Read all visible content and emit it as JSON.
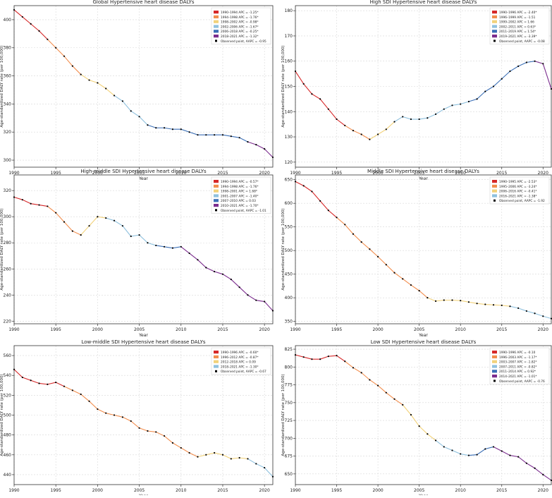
{
  "figure": {
    "shared_xlabel": "Year",
    "shared_ylabel": "Age-standardized DALY rate (per 100,000)",
    "observed_label_prefix": "Observed point, AAPC = "
  },
  "chart_data": [
    {
      "type": "line",
      "title": "Global Hypertensive heart disease DALYs",
      "xlabel": "Year",
      "ylabel": "Age-standardized DALY rate (per 100,000)",
      "xlim": [
        1990,
        2021
      ],
      "ylim": [
        295,
        410
      ],
      "yticks": [
        300,
        320,
        340,
        360,
        380,
        400
      ],
      "xticks": [
        1990,
        1995,
        2000,
        2005,
        2010,
        2015,
        2020
      ],
      "grid": true,
      "legend_position": "top-right",
      "aapc": "-0.95",
      "segments": [
        {
          "label": "1990–1994 APC = -1.25*",
          "color": "#d62728",
          "range": [
            1990,
            1994
          ]
        },
        {
          "label": "1994–1998 APC = -1.76*",
          "color": "#f28e4e",
          "range": [
            1994,
            1998
          ]
        },
        {
          "label": "1998–2002 APC = -0.98*",
          "color": "#f2d27a",
          "range": [
            1998,
            2002
          ]
        },
        {
          "label": "2002–2006 APC = -1.67*",
          "color": "#8fc1de",
          "range": [
            2002,
            2006
          ]
        },
        {
          "label": "2006–2018 APC = -0.25*",
          "color": "#3b6fb6",
          "range": [
            2006,
            2018
          ]
        },
        {
          "label": "2018–2021 APC = -1.32*",
          "color": "#7b2d8e",
          "range": [
            2018,
            2021
          ]
        }
      ],
      "x": [
        1990,
        1991,
        1992,
        1993,
        1994,
        1995,
        1996,
        1997,
        1998,
        1999,
        2000,
        2001,
        2002,
        2003,
        2004,
        2005,
        2006,
        2007,
        2008,
        2009,
        2010,
        2011,
        2012,
        2013,
        2014,
        2015,
        2016,
        2017,
        2018,
        2019,
        2020,
        2021
      ],
      "y": [
        407,
        402,
        397,
        392,
        386,
        380,
        374,
        367,
        361,
        357,
        355,
        351,
        346,
        342,
        335,
        331,
        325,
        323,
        323,
        322,
        322,
        320,
        318,
        318,
        318,
        318,
        317,
        316,
        313,
        311,
        308,
        302
      ]
    },
    {
      "type": "line",
      "title": "High SDI Hypertensive heart disease DALYs",
      "xlabel": "Year",
      "ylabel": "Age-standardized DALY rate (per 100,000)",
      "xlim": [
        1990,
        2021
      ],
      "ylim": [
        118,
        182
      ],
      "yticks": [
        120,
        130,
        140,
        150,
        160,
        170,
        180
      ],
      "xticks": [
        1990,
        1995,
        2000,
        2005,
        2010,
        2015,
        2020
      ],
      "grid": true,
      "legend_position": "top-right",
      "aapc": "-0.08",
      "segments": [
        {
          "label": "1990–1996 APC = -2.40*",
          "color": "#d62728",
          "range": [
            1990,
            1996
          ]
        },
        {
          "label": "1996–1999 APC = -1.51",
          "color": "#f28e4e",
          "range": [
            1996,
            1999
          ]
        },
        {
          "label": "1999–2002 APC = 1.66",
          "color": "#f2d27a",
          "range": [
            1999,
            2002
          ]
        },
        {
          "label": "2002–2011 APC = 0.63*",
          "color": "#8fc1de",
          "range": [
            2002,
            2011
          ]
        },
        {
          "label": "2011–2019 APC = 1.54*",
          "color": "#3b6fb6",
          "range": [
            2011,
            2019
          ]
        },
        {
          "label": "2019–2021 APC = -3.39*",
          "color": "#7b2d8e",
          "range": [
            2019,
            2021
          ]
        }
      ],
      "x": [
        1990,
        1991,
        1992,
        1993,
        1994,
        1995,
        1996,
        1997,
        1998,
        1999,
        2000,
        2001,
        2002,
        2003,
        2004,
        2005,
        2006,
        2007,
        2008,
        2009,
        2010,
        2011,
        2012,
        2013,
        2014,
        2015,
        2016,
        2017,
        2018,
        2019,
        2020,
        2021
      ],
      "y": [
        156,
        151,
        147,
        145,
        141,
        137,
        134.5,
        132.5,
        131,
        129,
        131,
        133,
        136,
        138,
        137,
        137,
        137.5,
        139,
        141,
        142.5,
        143,
        144,
        145,
        148,
        150,
        153,
        156,
        158,
        159.5,
        160,
        159,
        149
      ]
    },
    {
      "type": "line",
      "title": "High-middle SDI Hypertensive heart disease DALYs",
      "xlabel": "Year",
      "ylabel": "Age-standardized DALY rate (per 100,000)",
      "xlim": [
        1990,
        2021
      ],
      "ylim": [
        218,
        332
      ],
      "yticks": [
        220,
        240,
        260,
        280,
        300,
        320
      ],
      "xticks": [
        1990,
        1995,
        2000,
        2005,
        2010,
        2015,
        2020
      ],
      "grid": true,
      "legend_position": "top-right",
      "aapc": "-1.01",
      "segments": [
        {
          "label": "1990–1994 APC = -0.57*",
          "color": "#d62728",
          "range": [
            1990,
            1994
          ]
        },
        {
          "label": "1994–1998 APC = -1.76*",
          "color": "#f28e4e",
          "range": [
            1994,
            1998
          ]
        },
        {
          "label": "1998–2001 APC = 1.68*",
          "color": "#f2d27a",
          "range": [
            1998,
            2001
          ]
        },
        {
          "label": "2001–2007 APC = -1.40*",
          "color": "#8fc1de",
          "range": [
            2001,
            2007
          ]
        },
        {
          "label": "2007–2010 APC = 0.03",
          "color": "#3b6fb6",
          "range": [
            2007,
            2010
          ]
        },
        {
          "label": "2010–2021 APC = -1.70*",
          "color": "#7b2d8e",
          "range": [
            2010,
            2021
          ]
        }
      ],
      "x": [
        1990,
        1991,
        1992,
        1993,
        1994,
        1995,
        1996,
        1997,
        1998,
        1999,
        2000,
        2001,
        2002,
        2003,
        2004,
        2005,
        2006,
        2007,
        2008,
        2009,
        2010,
        2011,
        2012,
        2013,
        2014,
        2015,
        2016,
        2017,
        2018,
        2019,
        2020,
        2021
      ],
      "y": [
        315,
        313,
        310,
        309,
        308,
        303,
        296,
        289,
        286,
        293,
        300,
        299,
        297,
        293,
        285,
        286,
        280,
        278,
        277,
        276,
        277,
        272,
        267,
        261,
        258,
        256,
        252,
        246,
        240,
        236,
        235,
        228
      ]
    },
    {
      "type": "line",
      "title": "Middle SDI Hypertensive heart disease DALYs",
      "xlabel": "Year",
      "ylabel": "Age-standardized DALY rate (per 100,000)",
      "xlim": [
        1990,
        2021
      ],
      "ylim": [
        345,
        660
      ],
      "yticks": [
        350,
        400,
        450,
        500,
        550,
        600,
        650
      ],
      "xticks": [
        1990,
        1995,
        2000,
        2005,
        2010,
        2015,
        2020
      ],
      "grid": true,
      "legend_position": "top-right",
      "aapc": "-1.92",
      "segments": [
        {
          "label": "1990–1995 APC = -2.53*",
          "color": "#d62728",
          "range": [
            1990,
            1995
          ]
        },
        {
          "label": "1995–2006 APC = -3.24*",
          "color": "#f28e4e",
          "range": [
            1995,
            2006
          ]
        },
        {
          "label": "2006–2016 APC = -0.41*",
          "color": "#f2d27a",
          "range": [
            2006,
            2016
          ]
        },
        {
          "label": "2016–2021 APC = -1.38*",
          "color": "#8fc1de",
          "range": [
            2016,
            2021
          ]
        }
      ],
      "x": [
        1990,
        1991,
        1992,
        1993,
        1994,
        1995,
        1996,
        1997,
        1998,
        1999,
        2000,
        2001,
        2002,
        2003,
        2004,
        2005,
        2006,
        2007,
        2008,
        2009,
        2010,
        2011,
        2012,
        2013,
        2014,
        2015,
        2016,
        2017,
        2018,
        2019,
        2020,
        2021
      ],
      "y": [
        646,
        637,
        625,
        605,
        585,
        570,
        555,
        535,
        518,
        503,
        487,
        470,
        453,
        440,
        427,
        415,
        400,
        393,
        395,
        395,
        394,
        391,
        388,
        386,
        385,
        384,
        382,
        378,
        372,
        367,
        361,
        356
      ]
    },
    {
      "type": "line",
      "title": "Low-middle SDI Hypertensive heart disease DALYs",
      "xlabel": "Year",
      "ylabel": "Age-standardized DALY rate (per 100,000)",
      "xlim": [
        1990,
        2021
      ],
      "ylim": [
        430,
        570
      ],
      "yticks": [
        440,
        460,
        480,
        500,
        520,
        540,
        560
      ],
      "xticks": [
        1990,
        1995,
        2000,
        2005,
        2010,
        2015,
        2020
      ],
      "grid": true,
      "legend_position": "top-right",
      "aapc": "-0.67",
      "segments": [
        {
          "label": "1990–1996 APC = -0.60*",
          "color": "#d62728",
          "range": [
            1990,
            1996
          ]
        },
        {
          "label": "1996–2012 APC = -0.87*",
          "color": "#f28e4e",
          "range": [
            1996,
            2012
          ]
        },
        {
          "label": "2012–2018 APC = 0.09",
          "color": "#f2d27a",
          "range": [
            2012,
            2018
          ]
        },
        {
          "label": "2018–2021 APC = -1.30*",
          "color": "#8fc1de",
          "range": [
            2018,
            2021
          ]
        }
      ],
      "x": [
        1990,
        1991,
        1992,
        1993,
        1994,
        1995,
        1996,
        1997,
        1998,
        1999,
        2000,
        2001,
        2002,
        2003,
        2004,
        2005,
        2006,
        2007,
        2008,
        2009,
        2010,
        2011,
        2012,
        2013,
        2014,
        2015,
        2016,
        2017,
        2018,
        2019,
        2020,
        2021
      ],
      "y": [
        546,
        538,
        535,
        532,
        531,
        533,
        529,
        525,
        521,
        514,
        506,
        502,
        500,
        498,
        494,
        487,
        484,
        483,
        479,
        472,
        467,
        462,
        458,
        460,
        462,
        460,
        456,
        457,
        456,
        451,
        447,
        438
      ]
    },
    {
      "type": "line",
      "title": "Low SDI Hypertensive heart disease DALYs",
      "xlabel": "Year",
      "ylabel": "Age-standardized DALY rate (per 100,000)",
      "xlim": [
        1990,
        2021
      ],
      "ylim": [
        635,
        830
      ],
      "yticks": [
        650,
        675,
        700,
        725,
        750,
        775,
        800,
        825
      ],
      "xticks": [
        1990,
        1995,
        2000,
        2005,
        2010,
        2015,
        2020
      ],
      "grid": true,
      "legend_position": "top-right",
      "aapc": "-0.76",
      "segments": [
        {
          "label": "1990–1996 APC = -0.10",
          "color": "#d62728",
          "range": [
            1990,
            1996
          ]
        },
        {
          "label": "1996–2003 APC = -1.17*",
          "color": "#f28e4e",
          "range": [
            1996,
            2003
          ]
        },
        {
          "label": "2003–2007 APC = -1.82*",
          "color": "#f2d27a",
          "range": [
            2003,
            2007
          ]
        },
        {
          "label": "2007–2011 APC = -0.82*",
          "color": "#8fc1de",
          "range": [
            2007,
            2011
          ]
        },
        {
          "label": "2011–2014 APC = 0.92*",
          "color": "#3b6fb6",
          "range": [
            2011,
            2014
          ]
        },
        {
          "label": "2014–2021 APC = -1.01*",
          "color": "#7b2d8e",
          "range": [
            2014,
            2021
          ]
        }
      ],
      "x": [
        1990,
        1991,
        1992,
        1993,
        1994,
        1995,
        1996,
        1997,
        1998,
        1999,
        2000,
        2001,
        2002,
        2003,
        2004,
        2005,
        2006,
        2007,
        2008,
        2009,
        2010,
        2011,
        2012,
        2013,
        2014,
        2015,
        2016,
        2017,
        2018,
        2019,
        2020,
        2021
      ],
      "y": [
        817,
        814,
        811,
        811,
        815,
        816,
        808,
        799,
        792,
        782,
        774,
        764,
        755,
        747,
        733,
        717,
        706,
        697,
        688,
        683,
        678,
        676,
        677,
        685,
        688,
        682,
        676,
        674,
        665,
        658,
        649,
        641
      ]
    }
  ]
}
